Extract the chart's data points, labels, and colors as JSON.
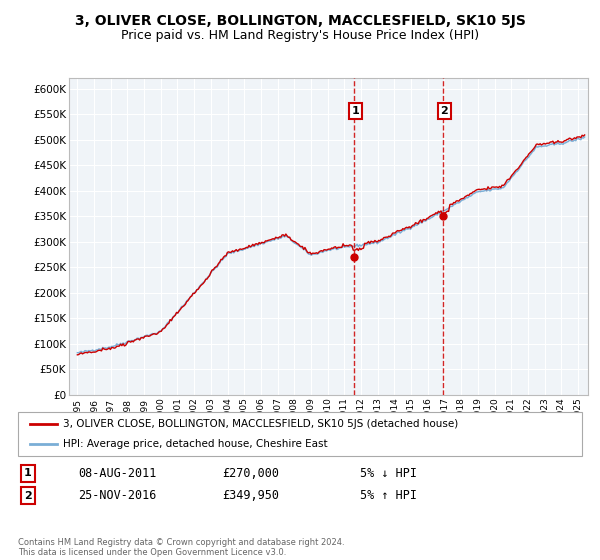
{
  "title": "3, OLIVER CLOSE, BOLLINGTON, MACCLESFIELD, SK10 5JS",
  "subtitle": "Price paid vs. HM Land Registry's House Price Index (HPI)",
  "ylabel_ticks": [
    "£0",
    "£50K",
    "£100K",
    "£150K",
    "£200K",
    "£250K",
    "£300K",
    "£350K",
    "£400K",
    "£450K",
    "£500K",
    "£550K",
    "£600K"
  ],
  "ytick_vals": [
    0,
    50000,
    100000,
    150000,
    200000,
    250000,
    300000,
    350000,
    400000,
    450000,
    500000,
    550000,
    600000
  ],
  "ylim": [
    0,
    620000
  ],
  "xlim_start": 1994.5,
  "xlim_end": 2025.6,
  "line1_label": "3, OLIVER CLOSE, BOLLINGTON, MACCLESFIELD, SK10 5JS (detached house)",
  "line2_label": "HPI: Average price, detached house, Cheshire East",
  "line1_color": "#cc0000",
  "line2_color": "#7aaed6",
  "fill_color": "#d6e8f7",
  "marker1_x": 2011.6,
  "marker1_y": 270000,
  "marker2_x": 2016.9,
  "marker2_y": 349950,
  "marker_color": "#cc0000",
  "vline_color": "#cc0000",
  "annotation1": [
    "1",
    "08-AUG-2011",
    "£270,000",
    "5% ↓ HPI"
  ],
  "annotation2": [
    "2",
    "25-NOV-2016",
    "£349,950",
    "5% ↑ HPI"
  ],
  "footer": "Contains HM Land Registry data © Crown copyright and database right 2024.\nThis data is licensed under the Open Government Licence v3.0.",
  "bg_color": "#ffffff",
  "plot_bg_color": "#f0f4f8",
  "grid_color": "#ffffff",
  "title_fontsize": 10,
  "subtitle_fontsize": 9,
  "tick_fontsize": 7.5
}
